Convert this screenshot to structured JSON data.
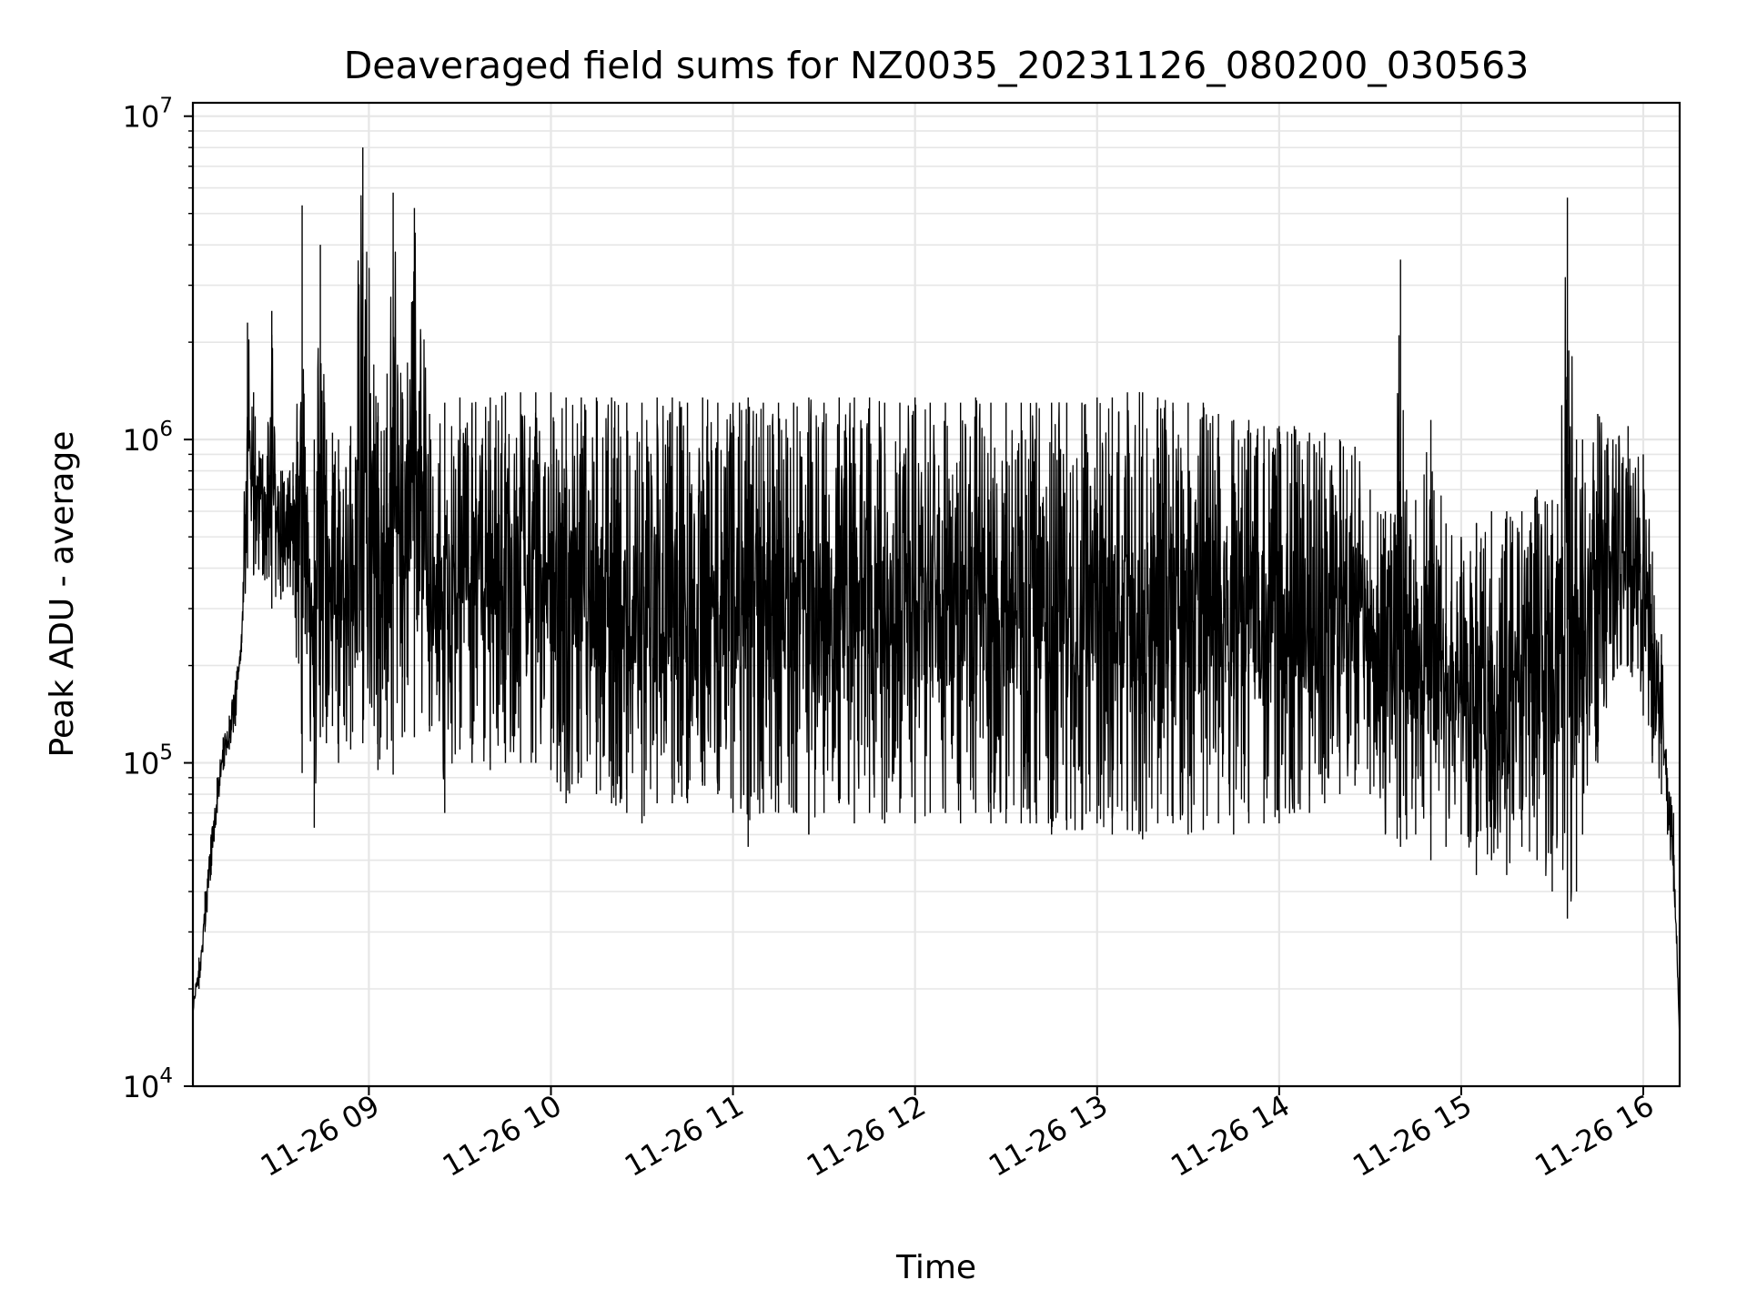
{
  "chart_data": {
    "type": "line",
    "title": "Deaveraged field sums for NZ0035_20231126_080200_030563",
    "xlabel": "Time",
    "ylabel": "Peak ADU - average",
    "yscale": "log",
    "ylim": [
      10000,
      11000000
    ],
    "xlim": [
      "11-26 08:02",
      "11-26 16:12"
    ],
    "grid": true,
    "line_color": "#000000",
    "grid_color": "#e6e6e6",
    "x_ticks": [
      {
        "value": "11-26 09:00",
        "label": "11-26 09"
      },
      {
        "value": "11-26 10:00",
        "label": "11-26 10"
      },
      {
        "value": "11-26 11:00",
        "label": "11-26 11"
      },
      {
        "value": "11-26 12:00",
        "label": "11-26 12"
      },
      {
        "value": "11-26 13:00",
        "label": "11-26 13"
      },
      {
        "value": "11-26 14:00",
        "label": "11-26 14"
      },
      {
        "value": "11-26 15:00",
        "label": "11-26 15"
      },
      {
        "value": "11-26 16:00",
        "label": "11-26 16"
      }
    ],
    "y_ticks": [
      {
        "value": 10000,
        "base": "10",
        "exp": "4"
      },
      {
        "value": 100000,
        "base": "10",
        "exp": "5"
      },
      {
        "value": 1000000,
        "base": "10",
        "exp": "6"
      },
      {
        "value": 10000000,
        "base": "10",
        "exp": "7"
      }
    ],
    "series": [
      {
        "x": [
          "11-26 08:02",
          "11-26 08:04",
          "11-26 08:06",
          "11-26 08:08",
          "11-26 08:10",
          "11-26 08:12",
          "11-26 08:14",
          "11-26 08:16",
          "11-26 08:18",
          "11-26 08:20",
          "11-26 08:22",
          "11-26 08:25",
          "11-26 08:28",
          "11-26 08:31",
          "11-26 08:35",
          "11-26 08:38",
          "11-26 08:39",
          "11-26 08:42",
          "11-26 08:44",
          "11-26 08:46",
          "11-26 08:48",
          "11-26 08:50",
          "11-26 08:54",
          "11-26 08:58",
          "11-26 09:03",
          "11-26 09:06",
          "11-26 09:08",
          "11-26 09:11",
          "11-26 09:15",
          "11-26 09:20",
          "11-26 09:25",
          "11-26 09:30",
          "11-26 09:34",
          "11-26 09:40",
          "11-26 09:45",
          "11-26 09:50",
          "11-26 09:55",
          "11-26 10:00",
          "11-26 10:05",
          "11-26 10:10",
          "11-26 10:15",
          "11-26 10:20",
          "11-26 10:25",
          "11-26 10:30",
          "11-26 10:35",
          "11-26 10:40",
          "11-26 10:45",
          "11-26 10:50",
          "11-26 10:55",
          "11-26 11:00",
          "11-26 11:05",
          "11-26 11:10",
          "11-26 11:15",
          "11-26 11:20",
          "11-26 11:25",
          "11-26 11:30",
          "11-26 11:35",
          "11-26 11:40",
          "11-26 11:45",
          "11-26 11:50",
          "11-26 11:55",
          "11-26 12:00",
          "11-26 12:05",
          "11-26 12:10",
          "11-26 12:15",
          "11-26 12:20",
          "11-26 12:25",
          "11-26 12:30",
          "11-26 12:35",
          "11-26 12:40",
          "11-26 12:45",
          "11-26 12:50",
          "11-26 12:55",
          "11-26 13:00",
          "11-26 13:05",
          "11-26 13:10",
          "11-26 13:15",
          "11-26 13:20",
          "11-26 13:25",
          "11-26 13:30",
          "11-26 13:35",
          "11-26 13:40",
          "11-26 13:45",
          "11-26 13:50",
          "11-26 13:55",
          "11-26 14:00",
          "11-26 14:05",
          "11-26 14:10",
          "11-26 14:15",
          "11-26 14:20",
          "11-26 14:25",
          "11-26 14:30",
          "11-26 14:35",
          "11-26 14:40",
          "11-26 14:42",
          "11-26 14:45",
          "11-26 14:50",
          "11-26 14:55",
          "11-26 15:00",
          "11-26 15:05",
          "11-26 15:10",
          "11-26 15:15",
          "11-26 15:20",
          "11-26 15:25",
          "11-26 15:30",
          "11-26 15:35",
          "11-26 15:38",
          "11-26 15:40",
          "11-26 15:45",
          "11-26 15:50",
          "11-26 15:55",
          "11-26 16:00",
          "11-26 16:03",
          "11-26 16:06",
          "11-26 16:08",
          "11-26 16:10",
          "11-26 16:12"
        ],
        "high": [
          18000,
          25000,
          40000,
          60000,
          90000,
          120000,
          140000,
          180000,
          250000,
          2300000,
          1400000,
          900000,
          2500000,
          800000,
          850000,
          5300000,
          950000,
          1000000,
          4000000,
          1000000,
          1050000,
          1000000,
          1100000,
          8000000,
          1300000,
          1600000,
          5800000,
          1400000,
          5200000,
          1200000,
          1300000,
          1350000,
          1300000,
          1350000,
          1400000,
          1400000,
          1400000,
          1400000,
          1350000,
          1350000,
          1350000,
          1350000,
          1300000,
          1300000,
          1350000,
          1350000,
          1300000,
          1350000,
          1300000,
          1300000,
          1350000,
          1300000,
          1300000,
          1300000,
          1350000,
          1300000,
          1350000,
          1350000,
          1350000,
          1300000,
          1300000,
          1350000,
          1300000,
          1300000,
          1300000,
          1350000,
          1300000,
          1300000,
          1300000,
          1300000,
          1300000,
          1300000,
          1300000,
          1350000,
          1350000,
          1400000,
          1400000,
          1350000,
          1300000,
          1300000,
          1300000,
          1200000,
          1150000,
          1150000,
          1100000,
          1100000,
          1100000,
          1050000,
          1050000,
          1000000,
          950000,
          700000,
          600000,
          3600000,
          700000,
          650000,
          1150000,
          550000,
          500000,
          550000,
          600000,
          600000,
          600000,
          700000,
          650000,
          5600000,
          1000000,
          1000000,
          1200000,
          1000000,
          1100000,
          900000,
          450000,
          250000,
          90000,
          70000,
          14000
        ],
        "low": [
          17000,
          20000,
          30000,
          45000,
          70000,
          95000,
          110000,
          130000,
          220000,
          400000,
          380000,
          380000,
          300000,
          320000,
          330000,
          93000,
          250000,
          63000,
          120000,
          115000,
          130000,
          100000,
          110000,
          115000,
          95000,
          110000,
          92000,
          120000,
          120000,
          125000,
          70000,
          110000,
          100000,
          95000,
          100000,
          100000,
          100000,
          95000,
          75000,
          90000,
          80000,
          75000,
          70000,
          65000,
          75000,
          75000,
          75000,
          85000,
          80000,
          70000,
          55000,
          70000,
          70000,
          70000,
          60000,
          70000,
          75000,
          65000,
          70000,
          65000,
          70000,
          65000,
          70000,
          70000,
          65000,
          70000,
          65000,
          65000,
          65000,
          65000,
          60000,
          62000,
          62000,
          65000,
          60000,
          62000,
          58000,
          65000,
          65000,
          60000,
          62000,
          65000,
          60000,
          65000,
          65000,
          65000,
          70000,
          70000,
          75000,
          80000,
          85000,
          80000,
          60000,
          55000,
          58000,
          60000,
          50000,
          55000,
          60000,
          45000,
          50000,
          45000,
          55000,
          50000,
          40000,
          33000,
          40000,
          60000,
          100000,
          180000,
          200000,
          140000,
          100000,
          80000,
          60000,
          40000,
          14000
        ]
      }
    ]
  }
}
